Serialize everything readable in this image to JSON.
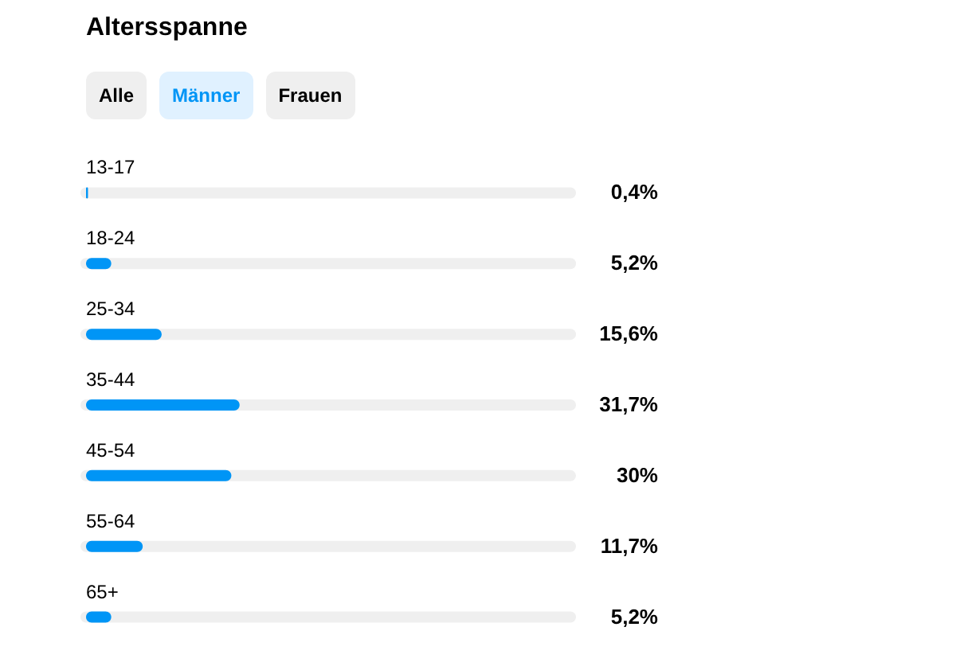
{
  "chart_data": {
    "type": "bar",
    "orientation": "horizontal",
    "title": "Altersspanne",
    "annotations": [
      "Alle",
      "Männer",
      "Frauen"
    ],
    "categories": [
      "13-17",
      "18-24",
      "25-34",
      "35-44",
      "45-54",
      "55-64",
      "65+"
    ],
    "values": [
      0.4,
      5.2,
      15.6,
      31.7,
      30,
      11.7,
      5.2
    ],
    "value_labels": [
      "0,4%",
      "5,2%",
      "15,6%",
      "31,7%",
      "30%",
      "11,7%",
      "5,2%"
    ],
    "color": "#0095f6",
    "xlim": [
      0,
      100
    ]
  }
}
